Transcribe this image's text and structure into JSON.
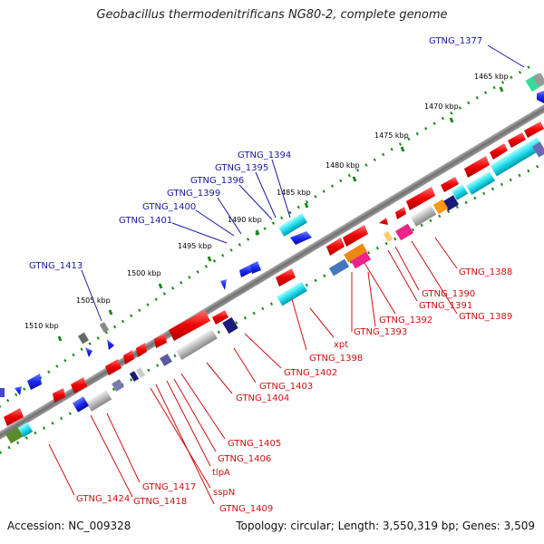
{
  "header": {
    "title": "Geobacillus thermodenitrificans NG80-2, complete genome"
  },
  "footer": {
    "accession": "Accession: NC_009328",
    "summary": "Topology: circular; Length: 3,550,319 bp; Genes: 3,509"
  },
  "scale": {
    "ticks": [
      "1465 kbp",
      "1470 kbp",
      "1475 kbp",
      "1480 kbp",
      "1485 kbp",
      "1490 kbp",
      "1495 kbp",
      "1500 kbp",
      "1505 kbp",
      "1510 kbp"
    ]
  },
  "labels_top": [
    "GTNG_1377",
    "GTNG_1394",
    "GTNG_1395",
    "GTNG_1396",
    "GTNG_1399",
    "GTNG_1400",
    "GTNG_1401",
    "GTNG_1413"
  ],
  "labels_bottom": [
    "GTNG_1388",
    "GTNG_1390",
    "GTNG_1391",
    "GTNG_1389",
    "GTNG_1392",
    "GTNG_1393",
    "xpt",
    "GTNG_1398",
    "GTNG_1402",
    "GTNG_1403",
    "GTNG_1404",
    "GTNG_1405",
    "GTNG_1406",
    "tlpA",
    "GTNG_1417",
    "sspN",
    "GTNG_1418",
    "GTNG_1424",
    "GTNG_1409"
  ],
  "colors": {
    "top_label": "#1a1aa0",
    "bottom_label": "#cc1111",
    "backbone": "#808080"
  }
}
